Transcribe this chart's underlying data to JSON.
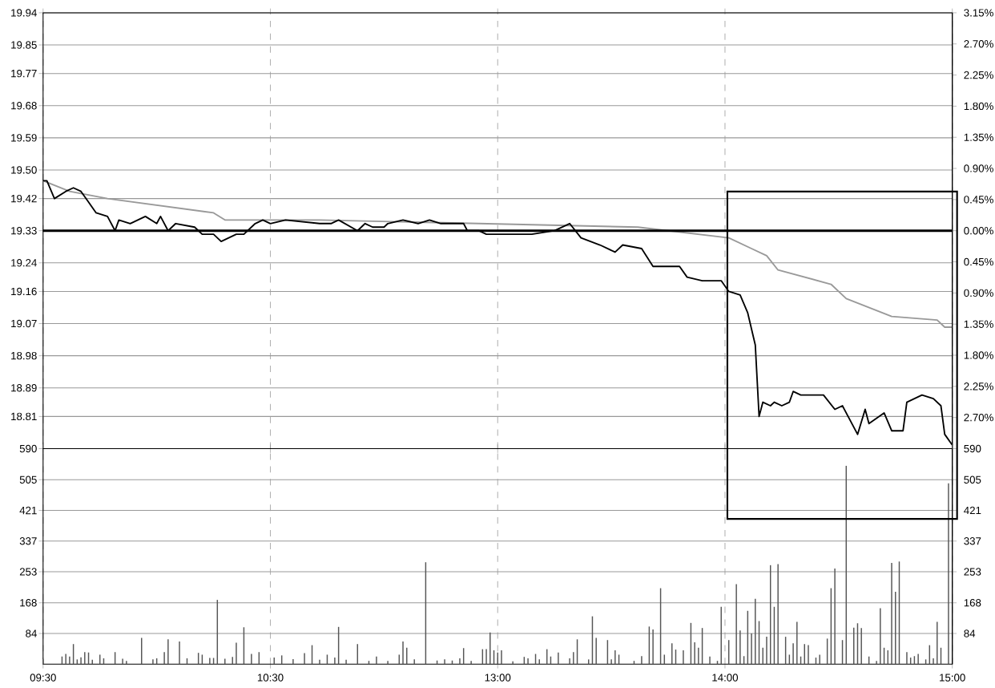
{
  "chart_data": [
    {
      "type": "line",
      "ylim": [
        18.72,
        19.94
      ],
      "y2lim": [
        -3.15,
        3.15
      ],
      "categories": [
        null,
        null,
        null,
        null,
        null,
        null,
        null,
        null,
        null,
        null,
        null,
        null,
        null,
        null,
        null,
        null,
        null,
        null,
        null,
        null,
        null,
        null,
        null,
        null,
        null,
        null,
        null,
        null,
        null,
        null,
        null,
        null,
        null,
        null,
        null,
        null,
        null,
        null,
        null,
        null,
        null,
        null,
        null,
        null,
        null,
        null,
        null,
        null,
        null,
        null,
        null,
        null,
        null,
        null,
        null,
        null,
        null,
        null,
        null,
        null,
        null,
        null,
        null,
        null,
        null,
        null,
        null,
        null,
        null,
        null,
        null,
        null,
        null,
        null,
        null,
        null,
        null,
        null,
        null,
        null,
        null,
        null,
        null,
        null,
        null,
        null,
        null,
        null,
        null,
        null,
        null,
        null,
        null,
        null,
        null,
        null,
        null,
        null,
        null,
        null,
        null,
        null,
        null,
        null,
        null,
        null,
        null,
        null,
        null,
        null,
        null,
        null,
        null,
        null,
        null,
        null,
        null,
        null,
        null,
        null,
        null,
        null,
        null,
        null,
        null,
        null,
        null,
        null,
        null,
        null,
        null,
        null,
        null,
        null,
        null,
        null,
        null,
        null,
        null,
        null,
        null,
        null,
        null,
        null,
        null,
        null,
        null,
        null,
        null,
        null,
        null,
        null,
        null,
        null,
        null,
        null,
        null,
        null,
        null,
        null,
        null,
        null,
        null,
        null,
        null,
        null,
        null,
        null,
        null,
        null,
        null,
        null,
        null,
        null,
        null,
        null,
        null,
        null,
        null,
        null,
        null,
        null,
        null,
        null,
        null,
        null,
        null,
        null,
        null,
        null,
        null,
        null,
        null,
        null,
        null,
        null,
        null,
        null,
        null,
        null,
        null,
        null,
        null,
        null,
        null,
        null,
        null,
        null,
        null,
        null,
        null,
        null,
        null,
        null,
        null,
        null,
        null,
        null,
        null,
        null,
        null,
        null,
        null,
        null,
        null,
        null,
        null,
        null,
        null,
        null,
        null,
        null,
        null,
        null,
        null,
        null,
        null,
        null,
        null,
        null,
        null
      ],
      "yticks": [
        18.81,
        18.89,
        18.98,
        19.07,
        19.16,
        19.24,
        19.33,
        19.42,
        {
          "value": 19.5,
          "label": "19.50"
        },
        19.59,
        19.68,
        19.77,
        19.85,
        19.94
      ],
      "y2ticks": [
        {
          "value": -2.7,
          "label": "2.70%"
        },
        {
          "value": -2.25,
          "label": "2.25%"
        },
        {
          "value": -1.8,
          "label": "1.80%"
        },
        {
          "value": -1.35,
          "label": "1.35%"
        },
        {
          "value": -0.9,
          "label": "0.90%"
        },
        {
          "value": -0.45,
          "label": "0.45%"
        },
        {
          "value": 0,
          "label": "0.00%"
        },
        {
          "value": 0.45,
          "label": "0.45%"
        },
        {
          "value": 0.9,
          "label": "0.90%"
        },
        {
          "value": 1.35,
          "label": "1.35%"
        },
        {
          "value": 1.8,
          "label": "1.80%"
        },
        {
          "value": 2.25,
          "label": "2.25%"
        },
        {
          "value": 2.7,
          "label": "2.70%"
        },
        {
          "value": 3.15,
          "label": "3.15%"
        }
      ],
      "tick_labels": "y",
      "grid": true,
      "ref_lines": [
        {
          "axis": "y",
          "value": 19.33
        }
      ],
      "series": [
        {
          "color": "#999999",
          "values": [
            19.47,
            null,
            null,
            null,
            null,
            null,
            null,
            19.44,
            null,
            null,
            null,
            null,
            null,
            null,
            null,
            null,
            null,
            19.42,
            null,
            null,
            null,
            null,
            null,
            null,
            null,
            null,
            null,
            null,
            null,
            null,
            null,
            19.4,
            null,
            null,
            null,
            null,
            null,
            null,
            null,
            null,
            null,
            null,
            null,
            null,
            null,
            19.38,
            null,
            null,
            19.36,
            null,
            null,
            null,
            null,
            null,
            null,
            null,
            null,
            null,
            null,
            null,
            null,
            null,
            null,
            null,
            null,
            null,
            null,
            null,
            null,
            null,
            null,
            null,
            null,
            19.36,
            null,
            null,
            null,
            null,
            null,
            null,
            null,
            null,
            null,
            null,
            null,
            null,
            null,
            null,
            null,
            null,
            null,
            null,
            null,
            null,
            null,
            null,
            null,
            null,
            null,
            null,
            null,
            null,
            null,
            null,
            null,
            null,
            null,
            null,
            null,
            null,
            null,
            null,
            null,
            null,
            null,
            19.35,
            null,
            null,
            null,
            null,
            null,
            null,
            null,
            null,
            null,
            null,
            null,
            null,
            null,
            null,
            null,
            null,
            null,
            null,
            null,
            null,
            null,
            null,
            null,
            null,
            null,
            null,
            null,
            null,
            null,
            null,
            null,
            null,
            null,
            null,
            null,
            null,
            null,
            null,
            null,
            null,
            null,
            19.34,
            null,
            null,
            null,
            null,
            null,
            null,
            null,
            null,
            null,
            null,
            null,
            null,
            null,
            null,
            null,
            null,
            null,
            null,
            null,
            null,
            null,
            null,
            null,
            19.31,
            null,
            null,
            null,
            null,
            null,
            19.28,
            null,
            null,
            null,
            19.26,
            null,
            null,
            19.22,
            null,
            null,
            null,
            null,
            null,
            null,
            null,
            null,
            null,
            null,
            null,
            null,
            null,
            19.18,
            null,
            null,
            null,
            19.14,
            null,
            null,
            null,
            null,
            null,
            null,
            null,
            null,
            null,
            null,
            null,
            19.09,
            null,
            null,
            null,
            null,
            null,
            null,
            null,
            null,
            null,
            null,
            null,
            19.08,
            null,
            19.06,
            null,
            19.06
          ]
        },
        {
          "color": "#000000",
          "values": [
            19.47,
            19.47,
            null,
            19.42,
            null,
            null,
            19.44,
            null,
            19.45,
            null,
            19.44,
            null,
            19.41,
            null,
            19.38,
            null,
            null,
            19.37,
            null,
            19.33,
            19.36,
            null,
            null,
            19.35,
            null,
            null,
            null,
            19.37,
            null,
            null,
            19.35,
            19.37,
            null,
            19.33,
            null,
            19.35,
            null,
            null,
            null,
            null,
            19.34,
            null,
            19.32,
            null,
            null,
            19.32,
            null,
            19.3,
            null,
            19.31,
            null,
            19.32,
            null,
            19.32,
            null,
            null,
            19.35,
            null,
            19.36,
            null,
            19.35,
            null,
            null,
            null,
            19.36,
            null,
            null,
            null,
            null,
            null,
            null,
            null,
            null,
            19.35,
            null,
            null,
            19.35,
            null,
            19.36,
            null,
            null,
            null,
            null,
            19.33,
            null,
            19.35,
            null,
            19.34,
            null,
            null,
            19.34,
            19.35,
            null,
            null,
            null,
            19.36,
            null,
            null,
            null,
            19.35,
            null,
            null,
            19.36,
            null,
            null,
            19.35,
            null,
            null,
            null,
            null,
            null,
            19.35,
            19.33,
            null,
            null,
            19.33,
            null,
            19.32,
            null,
            null,
            null,
            null,
            null,
            null,
            null,
            null,
            19.32,
            null,
            null,
            19.32,
            null,
            null,
            null,
            null,
            null,
            19.33,
            null,
            null,
            null,
            19.35,
            null,
            null,
            19.31,
            null,
            null,
            null,
            null,
            19.29,
            null,
            null,
            null,
            19.27,
            null,
            19.29,
            null,
            null,
            null,
            null,
            19.28,
            null,
            null,
            19.23,
            null,
            null,
            null,
            null,
            null,
            null,
            19.23,
            null,
            19.2,
            null,
            null,
            null,
            19.19,
            null,
            null,
            null,
            null,
            19.19,
            null,
            19.16,
            null,
            null,
            19.15,
            null,
            19.1,
            null,
            19.01,
            18.81,
            18.85,
            null,
            18.84,
            18.85,
            null,
            18.84,
            null,
            18.85,
            18.88,
            null,
            18.87,
            null,
            null,
            null,
            null,
            null,
            18.87,
            null,
            null,
            18.83,
            null,
            18.84,
            null,
            18.8,
            null,
            18.76,
            null,
            18.83,
            18.79,
            null,
            null,
            null,
            18.82,
            null,
            18.77,
            null,
            null,
            18.77,
            18.85,
            null,
            18.86,
            null,
            18.87,
            null,
            null,
            18.86,
            null,
            18.84,
            18.76,
            null,
            18.73
          ]
        }
      ]
    },
    {
      "type": "bar",
      "color": "#555555",
      "ylim": [
        0,
        590
      ],
      "y2lim": [
        0,
        590
      ],
      "categories": [
        "09:30",
        null,
        null,
        null,
        null,
        null,
        null,
        null,
        null,
        null,
        null,
        null,
        null,
        null,
        null,
        null,
        null,
        null,
        null,
        null,
        null,
        null,
        null,
        null,
        null,
        null,
        null,
        null,
        null,
        null,
        null,
        null,
        null,
        null,
        null,
        null,
        null,
        null,
        null,
        null,
        null,
        null,
        null,
        null,
        null,
        null,
        null,
        null,
        null,
        null,
        null,
        null,
        null,
        null,
        null,
        null,
        null,
        null,
        null,
        null,
        "10:30",
        null,
        null,
        null,
        null,
        null,
        null,
        null,
        null,
        null,
        null,
        null,
        null,
        null,
        null,
        null,
        null,
        null,
        null,
        null,
        null,
        null,
        null,
        null,
        null,
        null,
        null,
        null,
        null,
        null,
        null,
        null,
        null,
        null,
        null,
        null,
        null,
        null,
        null,
        null,
        null,
        null,
        null,
        null,
        null,
        null,
        null,
        null,
        null,
        null,
        null,
        null,
        null,
        null,
        null,
        null,
        null,
        null,
        null,
        null,
        "13:00",
        null,
        null,
        null,
        null,
        null,
        null,
        null,
        null,
        null,
        null,
        null,
        null,
        null,
        null,
        null,
        null,
        null,
        null,
        null,
        null,
        null,
        null,
        null,
        null,
        null,
        null,
        null,
        null,
        null,
        null,
        null,
        null,
        null,
        null,
        null,
        null,
        null,
        null,
        null,
        null,
        null,
        null,
        null,
        null,
        null,
        null,
        null,
        null,
        null,
        null,
        null,
        null,
        null,
        null,
        null,
        null,
        null,
        null,
        null,
        "14:00",
        null,
        null,
        null,
        null,
        null,
        null,
        null,
        null,
        null,
        null,
        null,
        null,
        null,
        null,
        null,
        null,
        null,
        null,
        null,
        null,
        null,
        null,
        null,
        null,
        null,
        null,
        null,
        null,
        null,
        null,
        null,
        null,
        null,
        null,
        null,
        null,
        null,
        null,
        null,
        null,
        null,
        null,
        null,
        null,
        null,
        null,
        null,
        null,
        null,
        null,
        null,
        null,
        null,
        null,
        null,
        null,
        null,
        null,
        null,
        "15:00"
      ],
      "yticks": [
        84,
        168,
        253,
        337,
        421,
        505,
        590
      ],
      "y2ticks": [
        84,
        168,
        253,
        337,
        421,
        505,
        590
      ],
      "grid": true,
      "values": [
        14,
        null,
        null,
        null,
        null,
        21,
        28,
        21,
        55,
        13,
        19,
        33,
        32,
        12,
        null,
        26,
        16,
        null,
        null,
        33,
        null,
        15,
        9,
        null,
        null,
        null,
        72,
        null,
        null,
        13,
        16,
        null,
        33,
        68,
        null,
        null,
        62,
        null,
        16,
        null,
        null,
        31,
        26,
        null,
        17,
        17,
        176,
        null,
        15,
        null,
        20,
        59,
        null,
        101,
        null,
        28,
        null,
        33,
        null,
        null,
        null,
        18,
        null,
        24,
        null,
        null,
        14,
        null,
        null,
        30,
        null,
        52,
        null,
        12,
        null,
        26,
        null,
        18,
        102,
        null,
        12,
        null,
        null,
        55,
        null,
        null,
        9,
        null,
        21,
        null,
        null,
        9,
        null,
        null,
        26,
        62,
        45,
        null,
        13,
        null,
        null,
        279,
        null,
        null,
        10,
        null,
        13,
        null,
        10,
        null,
        16,
        44,
        null,
        9,
        null,
        null,
        41,
        41,
        87,
        38,
        32,
        38,
        null,
        null,
        8,
        null,
        null,
        20,
        16,
        null,
        28,
        13,
        null,
        41,
        21,
        null,
        32,
        null,
        null,
        16,
        33,
        68,
        null,
        null,
        13,
        131,
        72,
        null,
        null,
        66,
        13,
        38,
        26,
        null,
        null,
        null,
        9,
        null,
        22,
        null,
        103,
        95,
        null,
        208,
        26,
        null,
        57,
        40,
        null,
        38,
        null,
        113,
        60,
        45,
        99,
        null,
        21,
        null,
        9,
        157,
        null,
        66,
        null,
        219,
        92,
        22,
        146,
        84,
        179,
        118,
        45,
        75,
        271,
        157,
        274,
        null,
        75,
        26,
        57,
        116,
        21,
        55,
        52,
        null,
        18,
        26,
        null,
        70,
        208,
        262,
        null,
        66,
        543,
        null,
        100,
        112,
        99,
        null,
        21,
        null,
        9,
        153,
        45,
        38,
        277,
        198,
        281,
        null,
        33,
        18,
        22,
        28,
        null,
        13,
        52,
        16,
        116,
        45,
        null,
        495,
        null
      ]
    }
  ]
}
